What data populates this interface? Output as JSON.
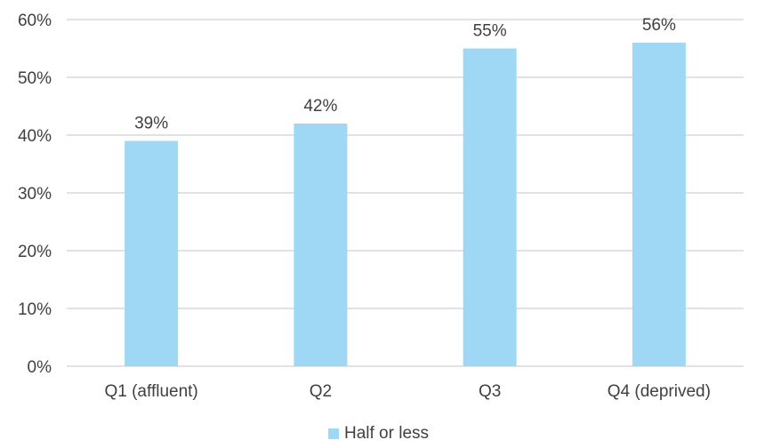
{
  "chart_data": {
    "type": "bar",
    "categories": [
      "Q1 (affluent)",
      "Q2",
      "Q3",
      "Q4 (deprived)"
    ],
    "series": [
      {
        "name": "Half or less",
        "values": [
          39,
          42,
          55,
          56
        ],
        "labels": [
          "39%",
          "42%",
          "55%",
          "56%"
        ],
        "color": "#9fd8f5"
      }
    ],
    "title": "",
    "xlabel": "",
    "ylabel": "",
    "ylim": [
      0,
      60
    ],
    "yticks": [
      0,
      10,
      20,
      30,
      40,
      50,
      60
    ],
    "ytick_labels": [
      "0%",
      "10%",
      "20%",
      "30%",
      "40%",
      "50%",
      "60%"
    ],
    "grid": true,
    "legend_position": "bottom"
  },
  "colors": {
    "bar": "#9fd8f5",
    "grid": "#d9d9d9",
    "text": "#404040"
  }
}
